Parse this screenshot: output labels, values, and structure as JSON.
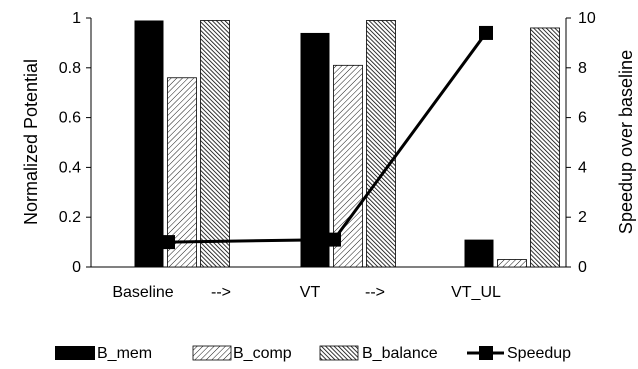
{
  "chart_data": {
    "type": "bar",
    "categories": [
      "Baseline",
      "VT",
      "VT_UL"
    ],
    "x_annotations": [
      "-->",
      "-->"
    ],
    "series": [
      {
        "name": "B_mem",
        "axis": "left",
        "values": [
          0.99,
          0.94,
          0.11
        ],
        "fill": "solid",
        "color": "#000000"
      },
      {
        "name": "B_comp",
        "axis": "left",
        "values": [
          0.76,
          0.81,
          0.03
        ],
        "fill": "light-hatch",
        "color": "#000000"
      },
      {
        "name": "B_balance",
        "axis": "left",
        "values": [
          0.99,
          0.99,
          0.96
        ],
        "fill": "dense-hatch",
        "color": "#000000"
      },
      {
        "name": "Speedup",
        "axis": "right",
        "type": "line",
        "values": [
          1.0,
          1.1,
          9.4
        ],
        "color": "#000000",
        "marker": "square"
      }
    ],
    "ylabel": "Normalized Potential",
    "y2label": "Speedup over baseline",
    "ylim": [
      0,
      1
    ],
    "y2lim": [
      0,
      10
    ],
    "yticks": [
      "0",
      "0.2",
      "0.4",
      "0.6",
      "0.8",
      "1"
    ],
    "y2ticks": [
      "0",
      "2",
      "4",
      "6",
      "8",
      "10"
    ],
    "legend_position": "bottom",
    "grid": false
  }
}
